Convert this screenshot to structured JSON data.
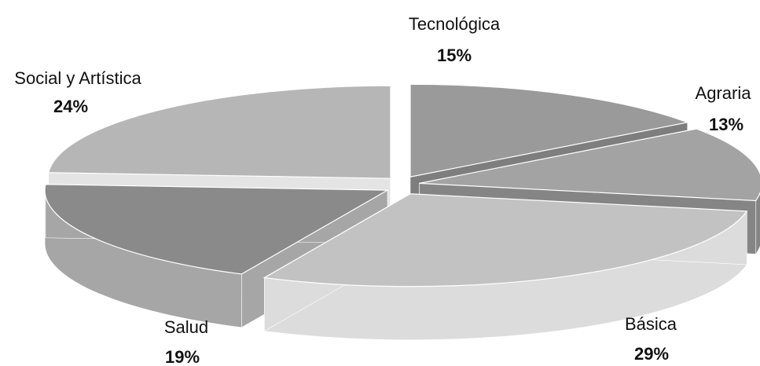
{
  "chart_data": {
    "type": "pie",
    "style": "3d-exploded",
    "slices": [
      {
        "label": "Tecnológica",
        "value": 15,
        "value_label": "15%",
        "color": "#9a9a9a",
        "side": "#7e7e7e"
      },
      {
        "label": "Agraria",
        "value": 13,
        "value_label": "13%",
        "color": "#a3a3a3",
        "side": "#858585"
      },
      {
        "label": "Básica",
        "value": 29,
        "value_label": "29%",
        "color": "#c2c2c2",
        "side": "#dcdcdc"
      },
      {
        "label": "Salud",
        "value": 19,
        "value_label": "19%",
        "color": "#8a8a8a",
        "side": "#a6a6a6"
      },
      {
        "label": "Social y Artística",
        "value": 24,
        "value_label": "24%",
        "color": "#b6b6b6",
        "side": "#e4e4e4"
      }
    ],
    "unit": "%"
  }
}
